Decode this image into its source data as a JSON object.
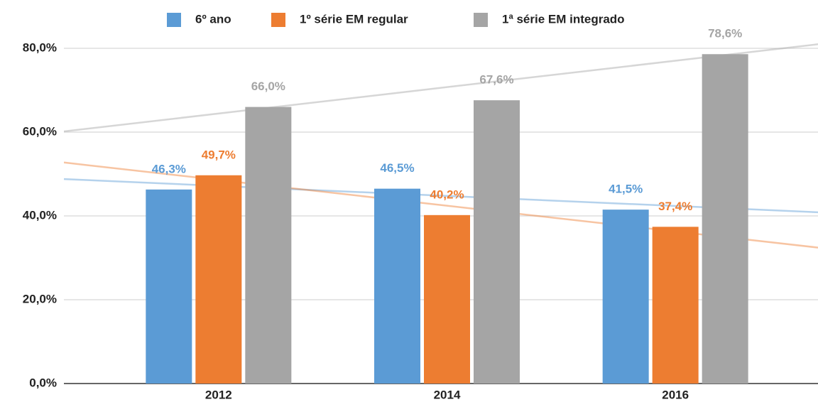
{
  "chart_data": {
    "type": "bar",
    "categories": [
      "2012",
      "2014",
      "2016"
    ],
    "series": [
      {
        "name": "6º ano",
        "color": "#5b9bd5",
        "values": [
          46.3,
          46.5,
          41.5
        ],
        "value_labels": [
          "46,3%",
          "46,5%",
          "41,5%"
        ]
      },
      {
        "name": "1º série EM regular",
        "color": "#ed7d31",
        "values": [
          49.7,
          40.2,
          37.4
        ],
        "value_labels": [
          "49,7%",
          "40,2%",
          "37,4%"
        ]
      },
      {
        "name": "1ª série EM integrado",
        "color": "#a5a5a5",
        "values": [
          66.0,
          67.6,
          78.6
        ],
        "value_labels": [
          "66,0%",
          "67,6%",
          "78,6%"
        ]
      }
    ],
    "ylim": [
      0,
      80
    ],
    "yticks": [
      {
        "value": 0,
        "label": "0,0%"
      },
      {
        "value": 20,
        "label": "20,0%"
      },
      {
        "value": 40,
        "label": "40,0%"
      },
      {
        "value": 60,
        "label": "60,0%"
      },
      {
        "value": 80,
        "label": "80,0%"
      }
    ],
    "grid": true,
    "trendlines": true,
    "legend": "top"
  }
}
